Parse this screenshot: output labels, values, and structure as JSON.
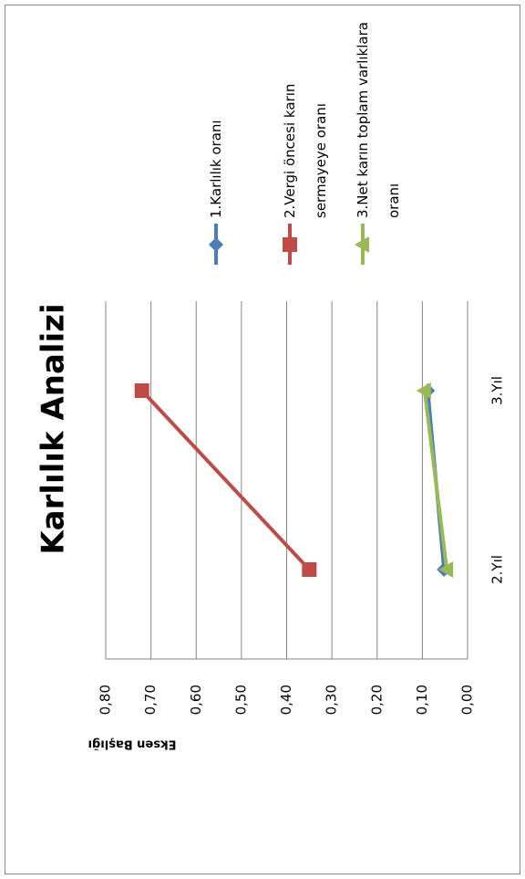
{
  "chart_data": {
    "type": "line",
    "title": "Karlılık Analizi",
    "y_label": "Eksen Başlığı",
    "categories": [
      "2.Yıl",
      "3.Yıl"
    ],
    "series": [
      {
        "name": "1.Karlılık oranı",
        "color": "#4a7ebb",
        "marker": "diamond",
        "values": [
          0.052,
          0.088
        ]
      },
      {
        "name": "2.Vergi öncesi karın sermayeye oranı",
        "color": "#be4b48",
        "marker": "square",
        "values": [
          0.35,
          0.72
        ]
      },
      {
        "name": "3.Net karın toplam varlıklara oranı",
        "color": "#98b954",
        "marker": "triangle",
        "values": [
          0.046,
          0.095
        ]
      }
    ],
    "ylim": [
      0,
      0.8
    ],
    "yticks": [
      {
        "value": 0,
        "label": "0,00"
      },
      {
        "value": 0.1,
        "label": "0,10"
      },
      {
        "value": 0.2,
        "label": "0,20"
      },
      {
        "value": 0.3,
        "label": "0,30"
      },
      {
        "value": 0.4,
        "label": "0,40"
      },
      {
        "value": 0.5,
        "label": "0,50"
      },
      {
        "value": 0.6,
        "label": "0,60"
      },
      {
        "value": 0.7,
        "label": "0,70"
      },
      {
        "value": 0.8,
        "label": "0,80"
      }
    ],
    "grid": true,
    "legend": "right"
  }
}
